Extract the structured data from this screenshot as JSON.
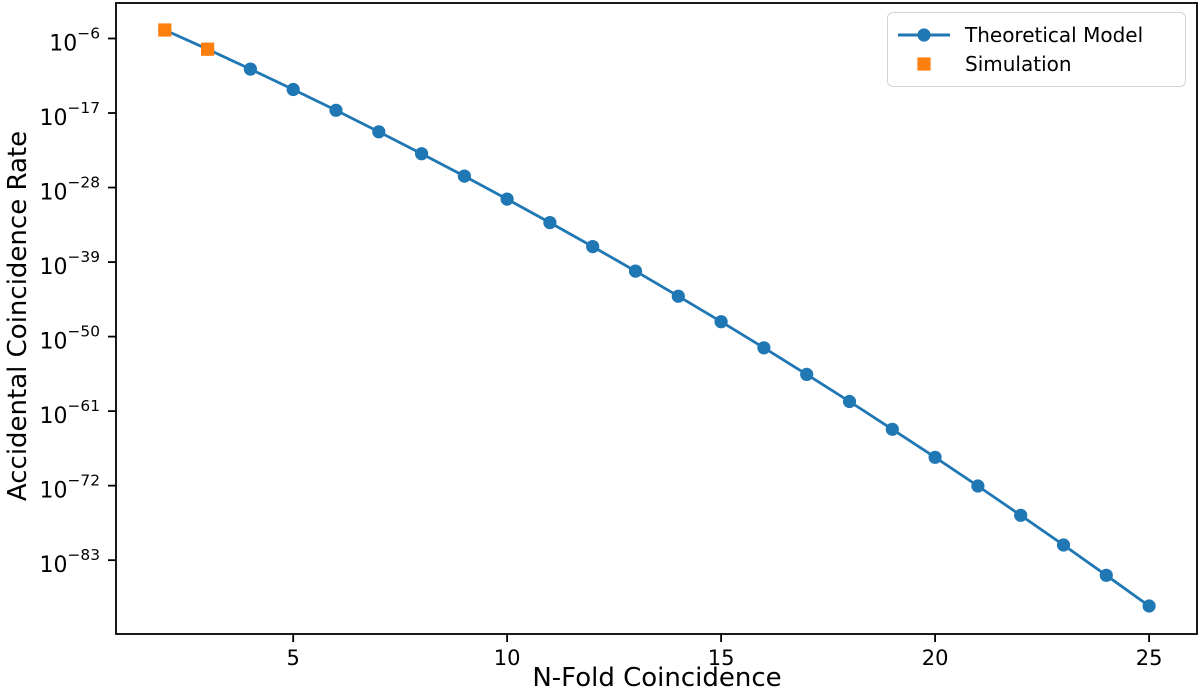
{
  "figure": {
    "background": "#ffffff"
  },
  "chart_data": {
    "type": "line",
    "title": "",
    "xlabel": "N-Fold Coincidence",
    "ylabel": "Accidental Coincidence Rate",
    "x_ticks": [
      5,
      10,
      15,
      20,
      25
    ],
    "y_tick_exponents": [
      -6,
      -17,
      -28,
      -39,
      -50,
      -61,
      -72,
      -83
    ],
    "xlim": [
      0.86,
      26.12
    ],
    "ylim_log10": [
      -93.9,
      -0.76
    ],
    "grid": false,
    "legend_position": "upper right",
    "axis_color": "#000000",
    "text_color": "#000000",
    "series": [
      {
        "name": "Theoretical Model",
        "style": "line+circle-markers",
        "marker": "circle",
        "color": "#1f77b4",
        "x": [
          2,
          3,
          4,
          5,
          6,
          7,
          8,
          9,
          10,
          11,
          12,
          13,
          14,
          15,
          16,
          17,
          18,
          19,
          20,
          21,
          22,
          23,
          24,
          25
        ],
        "y": [
          1.8e-05,
          2.6e-08,
          3e-11,
          3e-14,
          2.5e-17,
          1.7e-20,
          1e-23,
          4.9e-27,
          2e-30,
          6.8e-34,
          1.9e-37,
          4.7e-41,
          9.3e-45,
          1.6e-48,
          2.2e-52,
          2.6e-56,
          2.6e-60,
          2.1e-64,
          1.5e-68,
          8.7e-73,
          4.2e-77,
          1.7e-81,
          5.9e-86,
          1.7e-90
        ]
      },
      {
        "name": "Simulation",
        "style": "square-markers",
        "marker": "square",
        "color": "#ff7f0e",
        "x": [
          2,
          3
        ],
        "y": [
          1.8e-05,
          2.6e-08
        ]
      }
    ]
  }
}
